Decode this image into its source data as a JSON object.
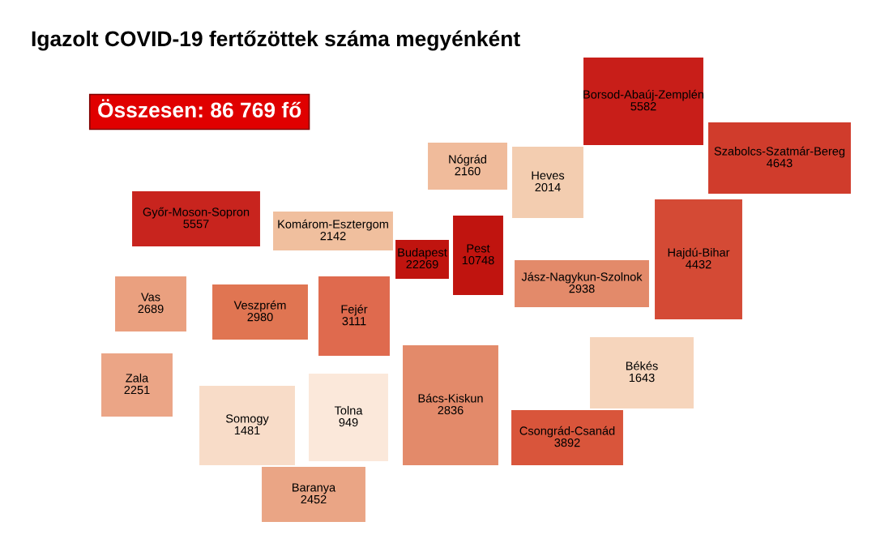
{
  "chart_data": {
    "type": "other",
    "title": "Igazolt COVID-19 fertőzöttek száma megyénként",
    "categories": [
      "Borsod-Abaúj-Zemplén",
      "Szabolcs-Szatmár-Bereg",
      "Nógrád",
      "Heves",
      "Győr-Moson-Sopron",
      "Komárom-Esztergom",
      "Budapest",
      "Pest",
      "Hajdú-Bihar",
      "Jász-Nagykun-Szolnok",
      "Vas",
      "Veszprém",
      "Fejér",
      "Békés",
      "Zala",
      "Somogy",
      "Tolna",
      "Bács-Kiskun",
      "Csongrád-Csanád",
      "Baranya"
    ],
    "values": [
      5582,
      4643,
      2160,
      2014,
      5557,
      2142,
      22269,
      10748,
      4432,
      2938,
      2689,
      2980,
      3111,
      1643,
      2251,
      1481,
      949,
      2836,
      3892,
      2452
    ],
    "colors": [
      "#c81e19",
      "#d03c2c",
      "#f0bb9b",
      "#f3cdb0",
      "#c8241e",
      "#f0bf9e",
      "#c0140f",
      "#c0140f",
      "#d44a35",
      "#e38a6a",
      "#eaa07f",
      "#e07552",
      "#df6a4e",
      "#f6d5bc",
      "#eba586",
      "#f8dcc8",
      "#fbe8da",
      "#e38a6a",
      "#d9553b",
      "#eaa585"
    ],
    "data_labels": true,
    "annotations": [
      "Összesen: 86 769 fő"
    ]
  }
}
